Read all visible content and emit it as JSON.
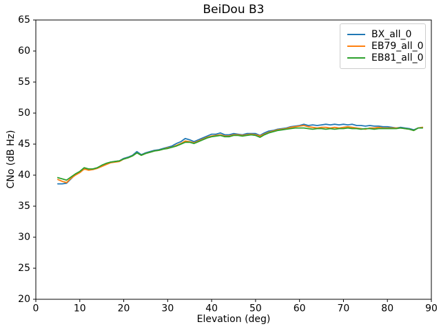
{
  "chart_data": {
    "type": "line",
    "title": "BeiDou B3",
    "xlabel": "Elevation (deg)",
    "ylabel": "CNo (dB Hz)",
    "xlim": [
      0,
      90
    ],
    "ylim": [
      20,
      65
    ],
    "xticks": [
      0,
      10,
      20,
      30,
      40,
      50,
      60,
      70,
      80,
      90
    ],
    "yticks": [
      20,
      25,
      30,
      35,
      40,
      45,
      50,
      55,
      60,
      65
    ],
    "grid": false,
    "legend_position": "upper right",
    "x": [
      5,
      6,
      7,
      8,
      9,
      10,
      11,
      12,
      13,
      14,
      15,
      16,
      17,
      18,
      19,
      20,
      21,
      22,
      23,
      24,
      25,
      26,
      27,
      28,
      29,
      30,
      31,
      32,
      33,
      34,
      35,
      36,
      37,
      38,
      39,
      40,
      41,
      42,
      43,
      44,
      45,
      46,
      47,
      48,
      49,
      50,
      51,
      52,
      53,
      54,
      55,
      56,
      57,
      58,
      59,
      60,
      61,
      62,
      63,
      64,
      65,
      66,
      67,
      68,
      69,
      70,
      71,
      72,
      73,
      74,
      75,
      76,
      77,
      78,
      79,
      80,
      81,
      82,
      83,
      84,
      85,
      86,
      87,
      88
    ],
    "series": [
      {
        "name": "BX_all_0",
        "color": "#1f77b4",
        "values": [
          38.6,
          38.6,
          38.7,
          39.4,
          40.1,
          40.5,
          41.1,
          40.9,
          41.0,
          41.2,
          41.5,
          41.8,
          42.1,
          42.2,
          42.3,
          42.7,
          42.9,
          43.2,
          43.8,
          43.3,
          43.6,
          43.8,
          44.0,
          44.1,
          44.3,
          44.5,
          44.7,
          45.1,
          45.4,
          45.9,
          45.7,
          45.4,
          45.7,
          46.0,
          46.3,
          46.6,
          46.6,
          46.8,
          46.5,
          46.5,
          46.7,
          46.6,
          46.5,
          46.7,
          46.7,
          46.7,
          46.4,
          46.8,
          47.1,
          47.2,
          47.4,
          47.5,
          47.6,
          47.8,
          47.9,
          48.0,
          48.2,
          48.0,
          48.1,
          48.0,
          48.1,
          48.2,
          48.1,
          48.2,
          48.1,
          48.2,
          48.1,
          48.2,
          48.0,
          48.0,
          47.9,
          48.0,
          47.9,
          47.9,
          47.8,
          47.8,
          47.7,
          47.6,
          47.7,
          47.6,
          47.5,
          47.3,
          47.6,
          47.7
        ]
      },
      {
        "name": "EB79_all_0",
        "color": "#ff7f0e",
        "values": [
          39.3,
          39.0,
          38.8,
          39.5,
          40.0,
          40.4,
          41.0,
          40.8,
          40.9,
          41.1,
          41.4,
          41.7,
          42.0,
          42.1,
          42.2,
          42.6,
          42.8,
          43.1,
          43.6,
          43.2,
          43.5,
          43.7,
          43.9,
          44.0,
          44.2,
          44.4,
          44.5,
          44.8,
          45.1,
          45.5,
          45.4,
          45.2,
          45.5,
          45.8,
          46.1,
          46.3,
          46.4,
          46.5,
          46.3,
          46.3,
          46.5,
          46.5,
          46.4,
          46.5,
          46.6,
          46.5,
          46.3,
          46.6,
          46.9,
          47.1,
          47.3,
          47.4,
          47.5,
          47.7,
          47.8,
          47.9,
          48.0,
          47.8,
          47.7,
          47.6,
          47.7,
          47.7,
          47.6,
          47.7,
          47.6,
          47.7,
          47.8,
          47.7,
          47.6,
          47.5,
          47.4,
          47.6,
          47.6,
          47.7,
          47.6,
          47.6,
          47.6,
          47.6,
          47.6,
          47.5,
          47.4,
          47.2,
          47.6,
          47.7
        ]
      },
      {
        "name": "EB81_all_0",
        "color": "#2ca02c",
        "values": [
          39.6,
          39.4,
          39.2,
          39.7,
          40.2,
          40.6,
          41.2,
          41.0,
          41.0,
          41.2,
          41.6,
          41.9,
          42.1,
          42.2,
          42.3,
          42.6,
          42.8,
          43.1,
          43.6,
          43.2,
          43.5,
          43.7,
          43.9,
          44.0,
          44.2,
          44.3,
          44.5,
          44.7,
          45.0,
          45.3,
          45.3,
          45.1,
          45.4,
          45.7,
          46.0,
          46.2,
          46.3,
          46.4,
          46.2,
          46.2,
          46.4,
          46.4,
          46.3,
          46.4,
          46.5,
          46.4,
          46.1,
          46.5,
          46.8,
          47.0,
          47.2,
          47.3,
          47.4,
          47.5,
          47.6,
          47.6,
          47.6,
          47.5,
          47.4,
          47.5,
          47.5,
          47.4,
          47.5,
          47.4,
          47.5,
          47.5,
          47.6,
          47.5,
          47.5,
          47.4,
          47.5,
          47.5,
          47.4,
          47.5,
          47.5,
          47.5,
          47.5,
          47.5,
          47.6,
          47.5,
          47.4,
          47.2,
          47.6,
          47.6
        ]
      }
    ],
    "axis_color": "#000000",
    "background_color": "#ffffff"
  }
}
